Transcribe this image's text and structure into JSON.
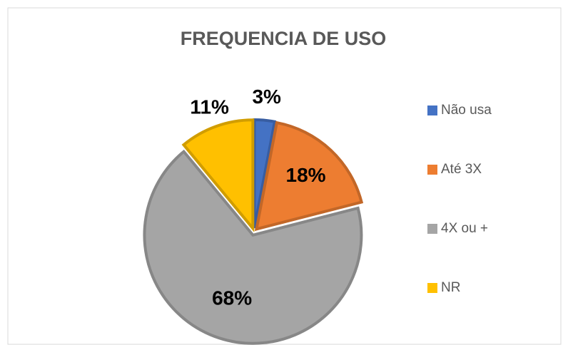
{
  "chart_data": {
    "type": "pie",
    "title": "FREQUENCIA DE USO",
    "categories": [
      "Não usa",
      "Até 3X",
      "4X ou +",
      "NR"
    ],
    "values": [
      3,
      18,
      68,
      11
    ],
    "value_labels": [
      "3%",
      "18%",
      "68%",
      "11%"
    ],
    "colors": [
      "#4472c4",
      "#ed7d31",
      "#a5a5a5",
      "#ffc000"
    ],
    "legend": "right"
  }
}
